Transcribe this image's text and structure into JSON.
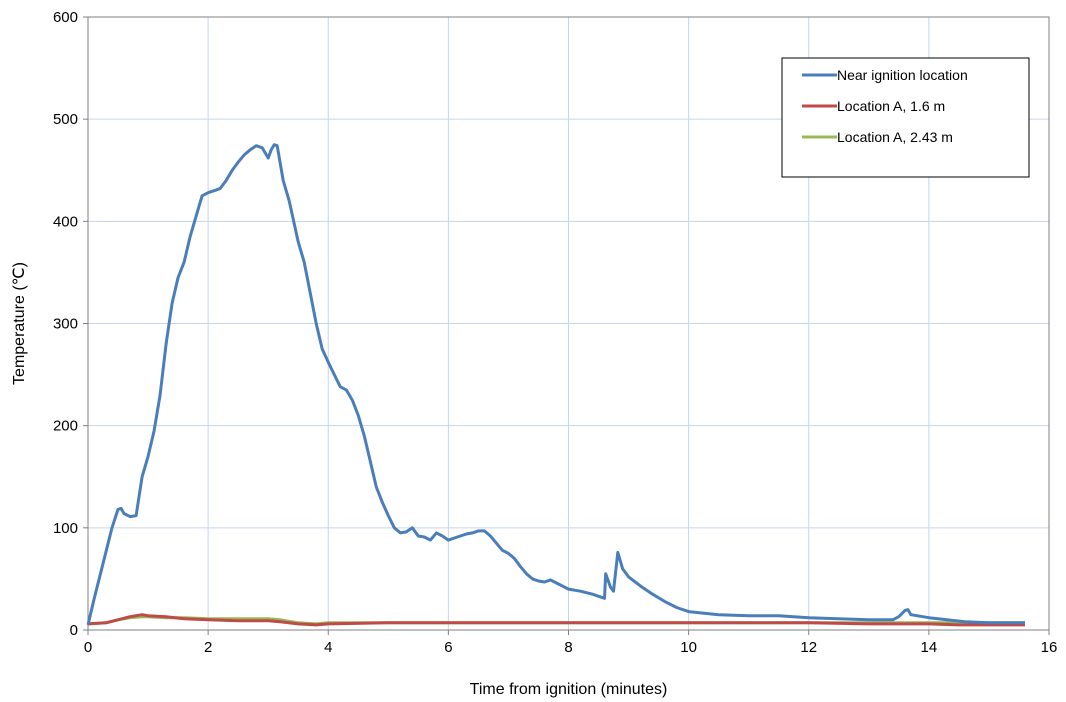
{
  "chart_data": {
    "type": "line",
    "title": "",
    "xlabel": "Time from ignition (minutes)",
    "ylabel": "Temperature (℃)",
    "xlim": [
      0,
      16
    ],
    "ylim": [
      0,
      600
    ],
    "x_ticks": [
      "0",
      "2",
      "4",
      "6",
      "8",
      "10",
      "12",
      "14",
      "16"
    ],
    "y_ticks": [
      "0",
      "100",
      "200",
      "300",
      "400",
      "500",
      "600"
    ],
    "grid": true,
    "legend_position": "top-right",
    "series": [
      {
        "name": "Near ignition location",
        "color": "#4a7ebb",
        "points": [
          [
            0,
            5
          ],
          [
            0.1,
            30
          ],
          [
            0.25,
            65
          ],
          [
            0.4,
            100
          ],
          [
            0.5,
            118
          ],
          [
            0.55,
            119
          ],
          [
            0.6,
            114
          ],
          [
            0.7,
            111
          ],
          [
            0.8,
            112
          ],
          [
            0.9,
            150
          ],
          [
            1.0,
            170
          ],
          [
            1.1,
            195
          ],
          [
            1.2,
            230
          ],
          [
            1.3,
            280
          ],
          [
            1.4,
            320
          ],
          [
            1.5,
            345
          ],
          [
            1.6,
            360
          ],
          [
            1.7,
            385
          ],
          [
            1.8,
            405
          ],
          [
            1.9,
            425
          ],
          [
            2.0,
            428
          ],
          [
            2.1,
            430
          ],
          [
            2.2,
            432
          ],
          [
            2.3,
            440
          ],
          [
            2.4,
            450
          ],
          [
            2.5,
            458
          ],
          [
            2.6,
            465
          ],
          [
            2.7,
            470
          ],
          [
            2.8,
            474
          ],
          [
            2.9,
            472
          ],
          [
            3.0,
            462
          ],
          [
            3.05,
            470
          ],
          [
            3.1,
            475
          ],
          [
            3.15,
            474
          ],
          [
            3.25,
            440
          ],
          [
            3.35,
            420
          ],
          [
            3.5,
            380
          ],
          [
            3.6,
            360
          ],
          [
            3.7,
            330
          ],
          [
            3.8,
            300
          ],
          [
            3.9,
            275
          ],
          [
            4.0,
            262
          ],
          [
            4.1,
            250
          ],
          [
            4.2,
            238
          ],
          [
            4.3,
            235
          ],
          [
            4.4,
            225
          ],
          [
            4.5,
            210
          ],
          [
            4.6,
            190
          ],
          [
            4.7,
            165
          ],
          [
            4.8,
            140
          ],
          [
            4.9,
            125
          ],
          [
            5.0,
            112
          ],
          [
            5.1,
            100
          ],
          [
            5.2,
            95
          ],
          [
            5.3,
            96
          ],
          [
            5.4,
            100
          ],
          [
            5.5,
            92
          ],
          [
            5.6,
            91
          ],
          [
            5.7,
            88
          ],
          [
            5.8,
            95
          ],
          [
            5.9,
            92
          ],
          [
            6.0,
            88
          ],
          [
            6.1,
            90
          ],
          [
            6.2,
            92
          ],
          [
            6.3,
            94
          ],
          [
            6.4,
            95
          ],
          [
            6.5,
            97
          ],
          [
            6.6,
            97
          ],
          [
            6.7,
            92
          ],
          [
            6.8,
            85
          ],
          [
            6.9,
            78
          ],
          [
            7.0,
            75
          ],
          [
            7.1,
            70
          ],
          [
            7.2,
            62
          ],
          [
            7.3,
            55
          ],
          [
            7.4,
            50
          ],
          [
            7.5,
            48
          ],
          [
            7.6,
            47
          ],
          [
            7.7,
            49
          ],
          [
            7.8,
            46
          ],
          [
            7.9,
            43
          ],
          [
            8.0,
            40
          ],
          [
            8.2,
            38
          ],
          [
            8.4,
            35
          ],
          [
            8.6,
            31
          ],
          [
            8.62,
            55
          ],
          [
            8.7,
            42
          ],
          [
            8.75,
            38
          ],
          [
            8.82,
            76
          ],
          [
            8.85,
            70
          ],
          [
            8.9,
            60
          ],
          [
            9.0,
            52
          ],
          [
            9.2,
            43
          ],
          [
            9.4,
            35
          ],
          [
            9.6,
            28
          ],
          [
            9.8,
            22
          ],
          [
            10.0,
            18
          ],
          [
            10.5,
            15
          ],
          [
            11.0,
            14
          ],
          [
            11.5,
            14
          ],
          [
            12.0,
            12
          ],
          [
            12.5,
            11
          ],
          [
            13.0,
            10
          ],
          [
            13.4,
            10
          ],
          [
            13.5,
            13
          ],
          [
            13.6,
            19
          ],
          [
            13.65,
            20
          ],
          [
            13.7,
            15
          ],
          [
            13.8,
            14
          ],
          [
            14.0,
            12
          ],
          [
            14.3,
            10
          ],
          [
            14.6,
            8
          ],
          [
            15.0,
            7
          ],
          [
            15.6,
            7
          ]
        ]
      },
      {
        "name": "Location A, 1.6 m",
        "color": "#be4b48",
        "points": [
          [
            0,
            6
          ],
          [
            0.3,
            7
          ],
          [
            0.5,
            10
          ],
          [
            0.7,
            13
          ],
          [
            0.9,
            15
          ],
          [
            1.0,
            14
          ],
          [
            1.3,
            13
          ],
          [
            1.6,
            11
          ],
          [
            2.0,
            10
          ],
          [
            2.5,
            9
          ],
          [
            3.0,
            9
          ],
          [
            3.2,
            8
          ],
          [
            3.5,
            6
          ],
          [
            3.8,
            5
          ],
          [
            4.0,
            6
          ],
          [
            5.0,
            7
          ],
          [
            6.0,
            7
          ],
          [
            7.0,
            7
          ],
          [
            8.0,
            7
          ],
          [
            9.0,
            7
          ],
          [
            10.0,
            7
          ],
          [
            11.0,
            7
          ],
          [
            12.0,
            7
          ],
          [
            13.0,
            6
          ],
          [
            14.0,
            6
          ],
          [
            14.5,
            5
          ],
          [
            15.6,
            5
          ]
        ]
      },
      {
        "name": "Location A, 2.43 m",
        "color": "#98b954",
        "points": [
          [
            0,
            6
          ],
          [
            0.3,
            7
          ],
          [
            0.5,
            10
          ],
          [
            0.7,
            12
          ],
          [
            0.9,
            13
          ],
          [
            1.0,
            13
          ],
          [
            1.3,
            12
          ],
          [
            1.6,
            12
          ],
          [
            2.0,
            11
          ],
          [
            2.5,
            11
          ],
          [
            3.0,
            11
          ],
          [
            3.2,
            10
          ],
          [
            3.5,
            7
          ],
          [
            3.8,
            6
          ],
          [
            4.0,
            7
          ],
          [
            5.0,
            7
          ],
          [
            6.0,
            7
          ],
          [
            7.0,
            7
          ],
          [
            8.0,
            7
          ],
          [
            9.0,
            7
          ],
          [
            10.0,
            7
          ],
          [
            11.0,
            7
          ],
          [
            12.0,
            7
          ],
          [
            13.0,
            7
          ],
          [
            14.0,
            7
          ],
          [
            14.5,
            7
          ],
          [
            15.6,
            7
          ]
        ]
      }
    ]
  }
}
